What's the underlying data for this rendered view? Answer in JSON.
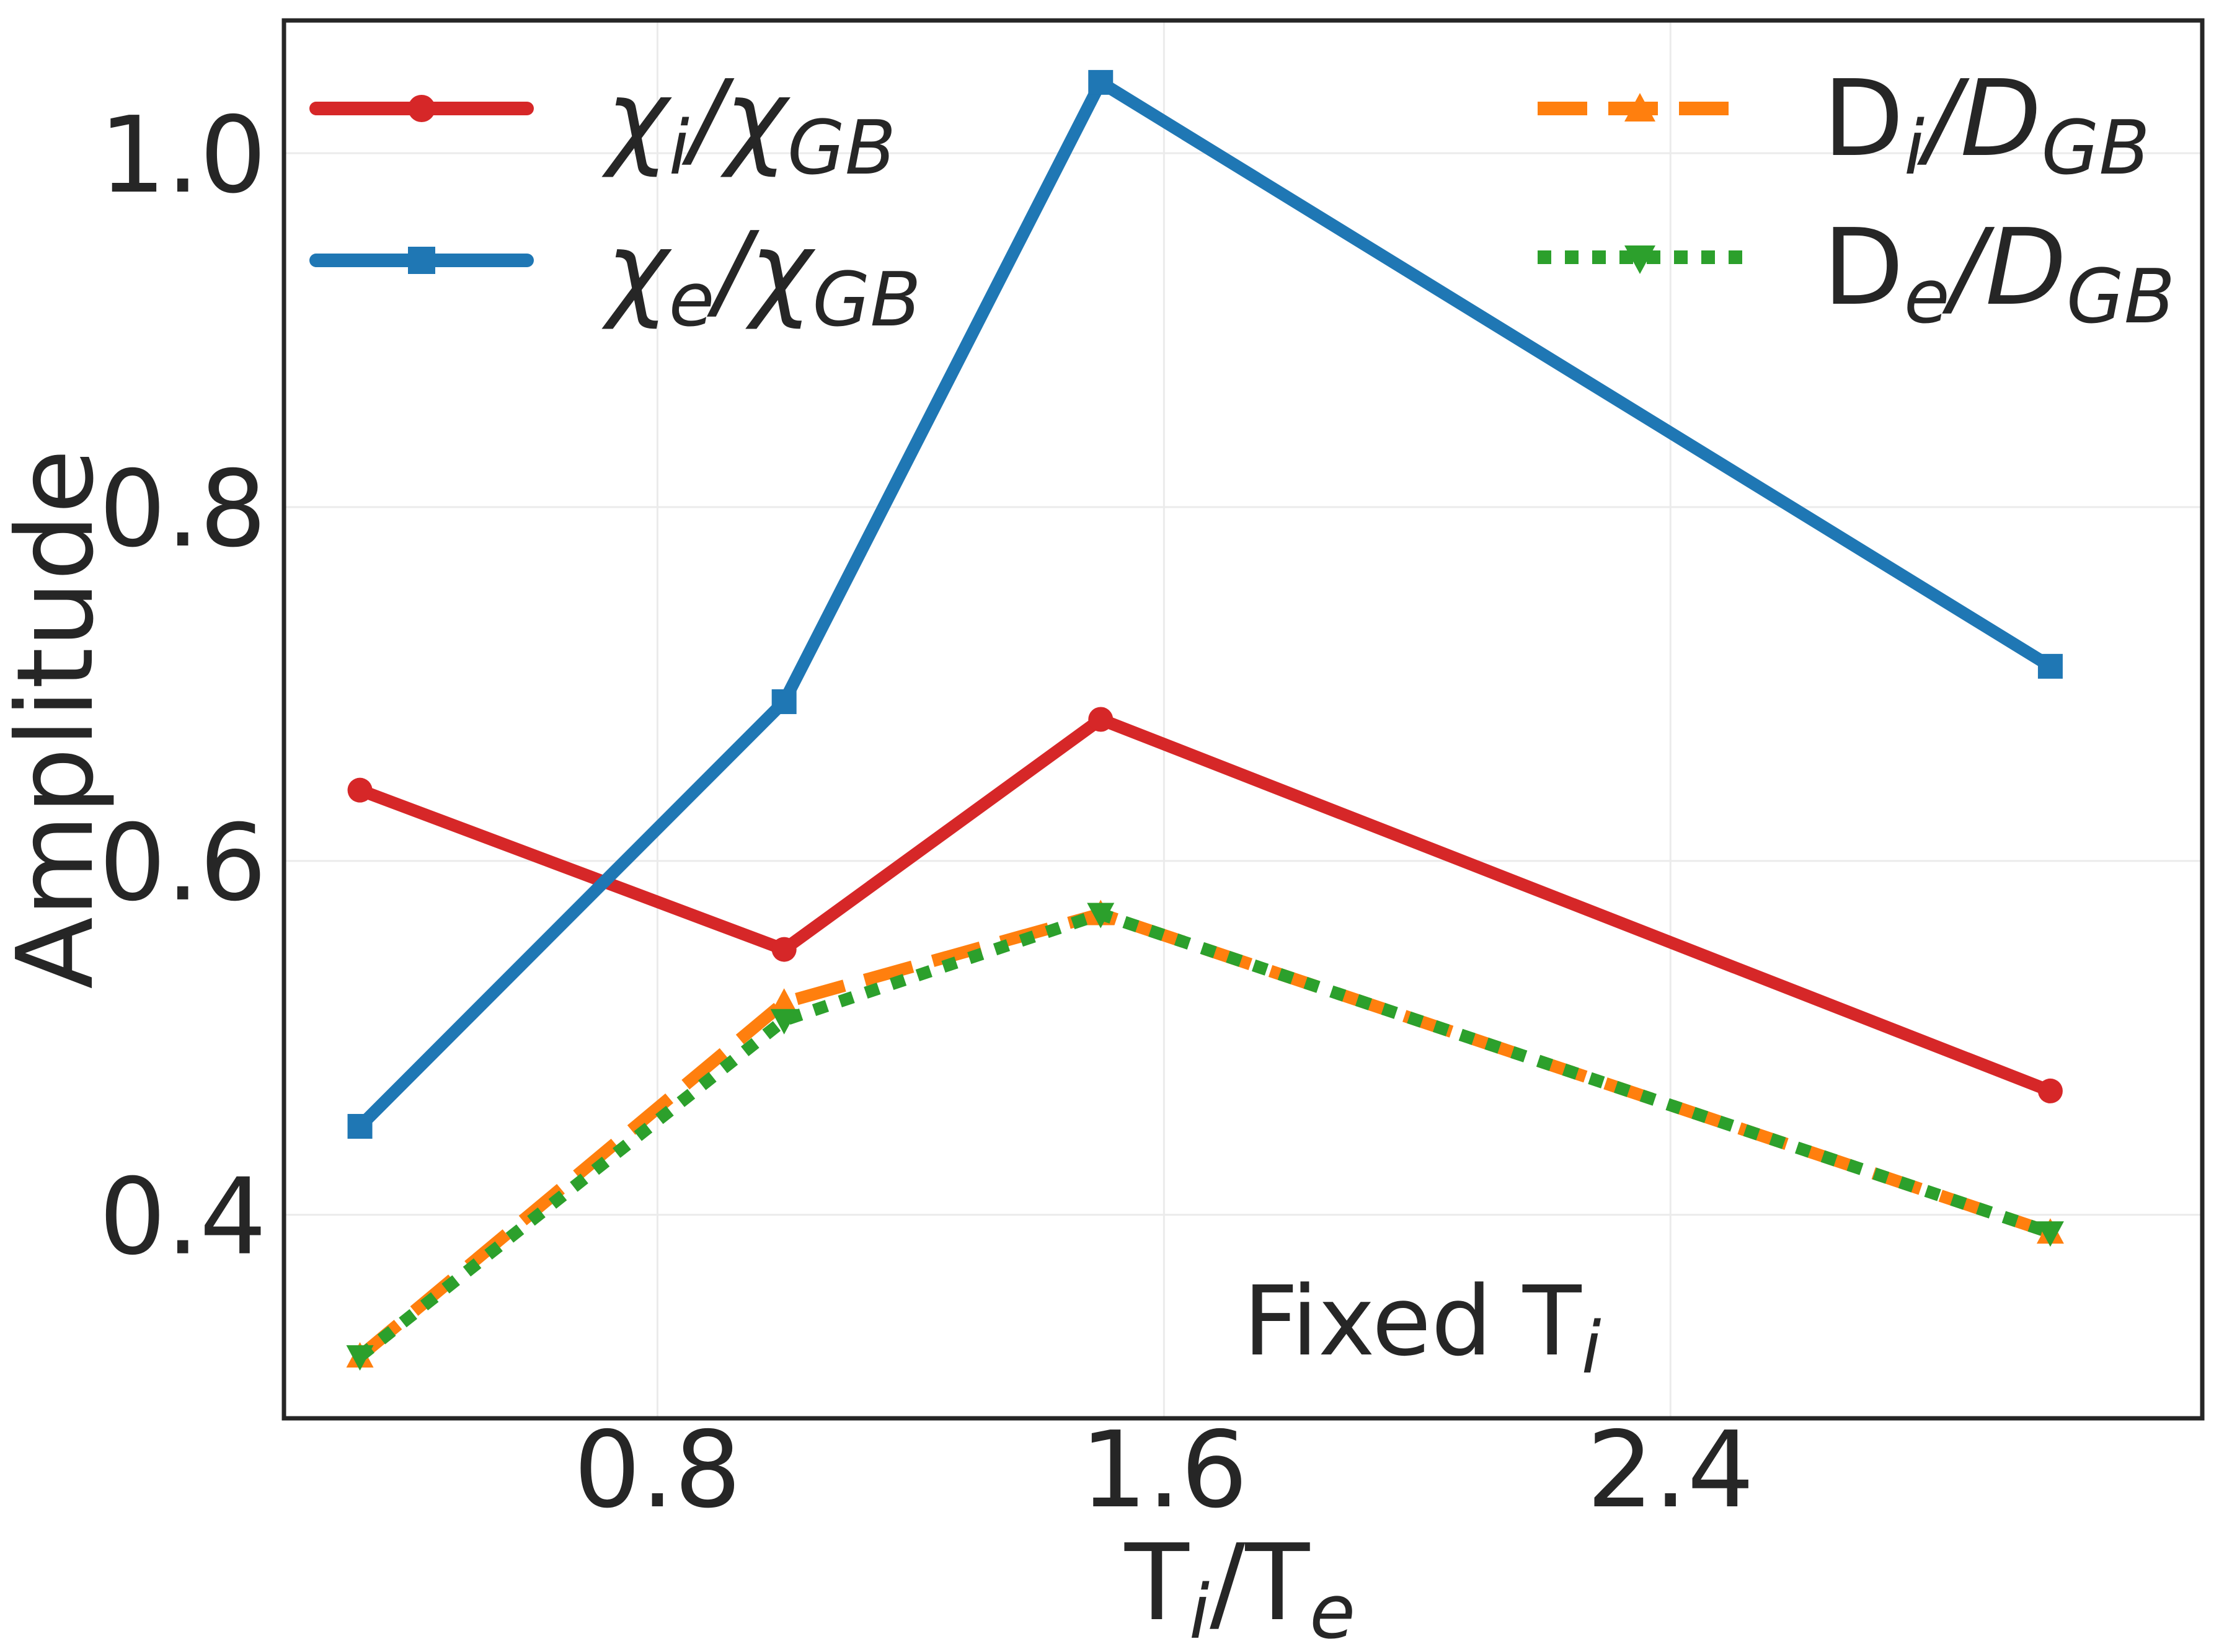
{
  "chart_data": {
    "type": "line",
    "title": "",
    "xlabel": "T_i/T_e",
    "ylabel": "Amplitude",
    "x": [
      0.33,
      1.0,
      1.5,
      3.0
    ],
    "xlim": [
      0.21,
      3.24
    ],
    "ylim": [
      0.285,
      1.075
    ],
    "xticks": [
      0.8,
      1.6,
      2.4
    ],
    "xtick_labels": [
      "0.8",
      "1.6",
      "2.4"
    ],
    "yticks": [
      0.4,
      0.6,
      0.8,
      1.0
    ],
    "ytick_labels": [
      "0.4",
      "0.6",
      "0.8",
      "1.0"
    ],
    "grid": true,
    "legend_placement": "top",
    "annotation": {
      "text": "Fixed T",
      "sub": "i"
    },
    "xlabel_parts": {
      "a": "T",
      "a_sub": "i",
      "sep": "/",
      "b": "T",
      "b_sub": "e"
    },
    "series": [
      {
        "name": "χi/χGB",
        "label_main": "χ",
        "label_sub": "i",
        "label_rest": "/χ",
        "label_rest_sub": "GB",
        "values": [
          0.64,
          0.55,
          0.68,
          0.47
        ],
        "color": "#d62728",
        "marker": "circle",
        "dash": "solid"
      },
      {
        "name": "χe/χGB",
        "label_main": "χ",
        "label_sub": "e",
        "label_rest": "/χ",
        "label_rest_sub": "GB",
        "values": [
          0.45,
          0.69,
          1.04,
          0.71
        ],
        "color": "#1f77b4",
        "marker": "square",
        "dash": "solid"
      },
      {
        "name": "Di/DGB",
        "label_main": "D",
        "label_sub": "i",
        "label_rest": "/D",
        "label_rest_sub": "GB",
        "values": [
          0.32,
          0.52,
          0.57,
          0.39
        ],
        "color": "#ff7f0e",
        "marker": "triangle-up",
        "dash": "dashed"
      },
      {
        "name": "De/DGB",
        "label_main": "D",
        "label_sub": "e",
        "label_rest": "/D",
        "label_rest_sub": "GB",
        "values": [
          0.32,
          0.51,
          0.57,
          0.39
        ],
        "color": "#2ca02c",
        "marker": "triangle-down",
        "dash": "dotted"
      }
    ]
  }
}
